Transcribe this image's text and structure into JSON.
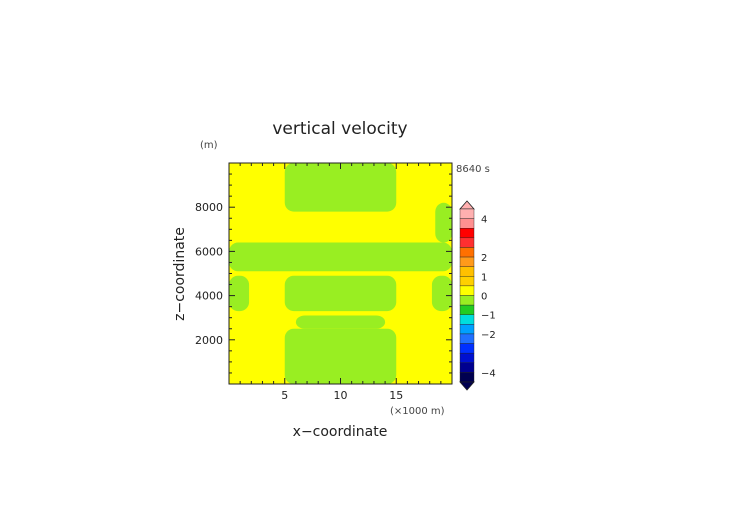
{
  "chart_data": {
    "type": "heatmap",
    "title": "vertical velocity",
    "xlabel": "x−coordinate",
    "ylabel": "z−coordinate",
    "x_unit": "(×1000 m)",
    "y_unit": "(m)",
    "time_label": "8640 s",
    "xlim": [
      0,
      20
    ],
    "ylim": [
      0,
      10000
    ],
    "x_ticks": [
      5,
      10,
      15
    ],
    "x_tick_labels": [
      "5",
      "10",
      "15"
    ],
    "y_ticks": [
      2000,
      4000,
      6000,
      8000
    ],
    "y_tick_labels": [
      "2000",
      "4000",
      "6000",
      "8000"
    ],
    "field_colors": {
      "positive_small": "#ffff00",
      "negative_small": "#99ee22"
    },
    "regions": [
      {
        "value": "positive_small",
        "x": [
          0,
          20
        ],
        "z": [
          0,
          10000
        ]
      },
      {
        "value": "negative_small",
        "x": [
          5,
          15
        ],
        "z": [
          0,
          2500
        ]
      },
      {
        "value": "negative_small",
        "x": [
          6,
          14
        ],
        "z": [
          2500,
          3100
        ]
      },
      {
        "value": "negative_small",
        "x": [
          0,
          20
        ],
        "z": [
          5100,
          6400
        ]
      },
      {
        "value": "negative_small",
        "x": [
          0,
          1.8
        ],
        "z": [
          3300,
          4900
        ]
      },
      {
        "value": "negative_small",
        "x": [
          18.2,
          20
        ],
        "z": [
          3300,
          4900
        ]
      },
      {
        "value": "negative_small",
        "x": [
          5,
          15
        ],
        "z": [
          3300,
          4900
        ]
      },
      {
        "value": "negative_small",
        "x": [
          5,
          15
        ],
        "z": [
          7800,
          10000
        ]
      },
      {
        "value": "negative_small",
        "x": [
          18.5,
          20
        ],
        "z": [
          6400,
          8200
        ]
      }
    ],
    "colorbar": {
      "tick_labels": [
        "4",
        "2",
        "1",
        "0",
        "−1",
        "−2",
        "−4"
      ],
      "tick_values": [
        4,
        2,
        1,
        0,
        -1,
        -2,
        -4
      ],
      "colors_top_to_bottom": [
        "#ffb0b0",
        "#ff9090",
        "#ff0000",
        "#ff3030",
        "#ff7000",
        "#ff9a1a",
        "#ffc000",
        "#ffd000",
        "#ffff00",
        "#99ee22",
        "#22cc22",
        "#00dddd",
        "#00a0ff",
        "#2070ff",
        "#0030ff",
        "#0010d0",
        "#000090",
        "#000050"
      ]
    }
  }
}
